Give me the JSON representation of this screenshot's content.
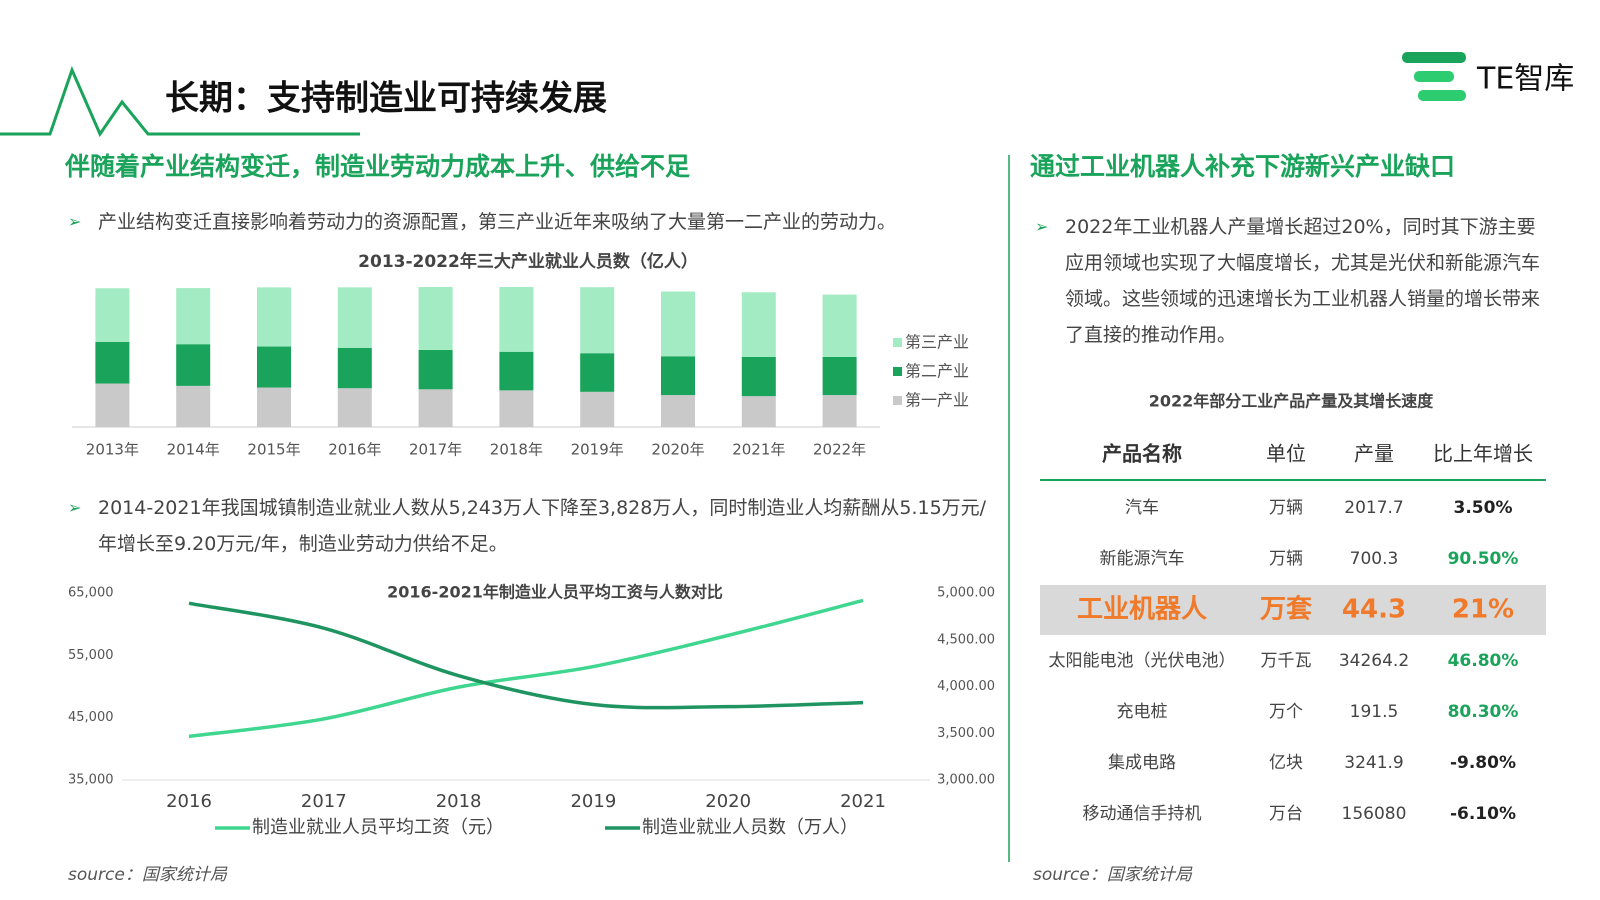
{
  "header": {
    "title": "长期：支持制造业可持续发展",
    "brand": "TE智库"
  },
  "left": {
    "heading": "伴随着产业结构变迁，制造业劳动力成本上升、供给不足",
    "bullet1": "产业结构变迁直接影响着劳动力的资源配置，第三产业近年来吸纳了大量第一二产业的劳动力。",
    "bullet2": "2014-2021年我国城镇制造业就业人数从5,243万人下降至3,828万人，同时制造业人均薪酬从5.15万元/年增长至9.20万元/年，制造业劳动力供给不足。",
    "source": "source：国家统计局"
  },
  "right": {
    "heading": "通过工业机器人补充下游新兴产业缺口",
    "bullet": "2022年工业机器人产量增长超过20%，同时其下游主要应用领域也实现了大幅度增长，尤其是光伏和新能源汽车领域。这些领域的迅速增长为工业机器人销量的增长带来了直接的推动作用。",
    "source": "source：国家统计局"
  },
  "chart_data": [
    {
      "type": "bar",
      "stacked": true,
      "title": "2013-2022年三大产业就业人员数（亿人）",
      "categories": [
        "2013年",
        "2014年",
        "2015年",
        "2016年",
        "2017年",
        "2018年",
        "2019年",
        "2020年",
        "2021年",
        "2022年"
      ],
      "series": [
        {
          "name": "第三产业",
          "color": "#a3ebc3",
          "values": [
            2.97,
            3.11,
            3.28,
            3.35,
            3.49,
            3.59,
            3.66,
            3.59,
            3.59,
            3.46
          ]
        },
        {
          "name": "第二产业",
          "color": "#1aa35a",
          "values": [
            2.31,
            2.31,
            2.27,
            2.24,
            2.18,
            2.14,
            2.14,
            2.15,
            2.17,
            2.11
          ]
        },
        {
          "name": "第一产业",
          "color": "#c9c9c9",
          "values": [
            2.41,
            2.28,
            2.19,
            2.15,
            2.09,
            2.03,
            1.95,
            1.77,
            1.71,
            1.77
          ]
        }
      ],
      "legend": "right"
    },
    {
      "type": "line",
      "title": "2016-2021年制造业人员平均工资与人数对比",
      "categories": [
        "2016",
        "2017",
        "2018",
        "2019",
        "2020",
        "2021"
      ],
      "series": [
        {
          "name": "制造业就业人员平均工资（元）",
          "color": "#3fd68f",
          "values": [
            42000,
            44800,
            49900,
            53200,
            58200,
            63800
          ]
        },
        {
          "name": "制造业就业人员数（万人）",
          "color": "#1f9461",
          "axis": "y2",
          "values": [
            4890,
            4624,
            4116,
            3807,
            3785,
            3828
          ]
        }
      ],
      "ylim": [
        35000,
        65000
      ],
      "yticks": [
        {
          "value": 35000,
          "label": "35,000"
        },
        {
          "value": 45000,
          "label": "45,000"
        },
        {
          "value": 55000,
          "label": "55,000"
        },
        {
          "value": 65000,
          "label": "65,000"
        }
      ],
      "y2lim": [
        3000,
        5000
      ],
      "y2ticks": [
        {
          "value": 3000,
          "label": "3,000.00"
        },
        {
          "value": 3500,
          "label": "3,500.00"
        },
        {
          "value": 4000,
          "label": "4,000.00"
        },
        {
          "value": 4500,
          "label": "4,500.00"
        },
        {
          "value": 5000,
          "label": "5,000.00"
        }
      ],
      "legend": "bottom"
    }
  ],
  "table": {
    "title": "2022年部分工业产品产量及其增长速度",
    "columns": [
      "产品名称",
      "单位",
      "产量",
      "比上年增长"
    ],
    "rows": [
      [
        "汽车",
        "万辆",
        "2017.7",
        "3.50%"
      ],
      [
        "新能源汽车",
        "万辆",
        "700.3",
        "90.50%"
      ],
      [
        "工业机器人",
        "万套",
        "44.3",
        "21%"
      ],
      [
        "太阳能电池（光伏电池）",
        "万千瓦",
        "34264.2",
        "46.80%"
      ],
      [
        "充电桩",
        "万个",
        "191.5",
        "80.30%"
      ],
      [
        "集成电路",
        "亿块",
        "3241.9",
        "-9.80%"
      ],
      [
        "移动通信手持机",
        "万台",
        "156080",
        "-6.10%"
      ]
    ],
    "highlight_row": 2,
    "highlight_color": "#f07a2a",
    "growth_colors": [
      "#222222",
      "#1aa35a",
      "#f07a2a",
      "#1aa35a",
      "#1aa35a",
      "#222222",
      "#222222"
    ]
  }
}
